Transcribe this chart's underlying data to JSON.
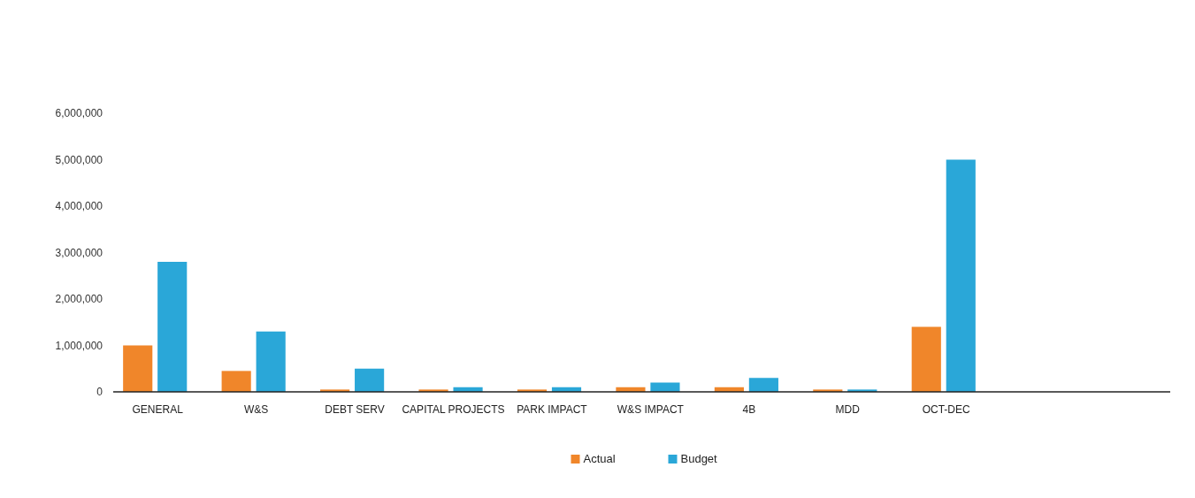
{
  "chart_data": {
    "type": "bar",
    "categories": [
      "GENERAL",
      "W&S",
      "DEBT SERV",
      "CAPITAL PROJECTS",
      "PARK IMPACT",
      "W&S IMPACT",
      "4B",
      "MDD",
      "OCT-DEC"
    ],
    "series": [
      {
        "name": "Actual",
        "color": "#f0862a",
        "values": [
          1000000,
          450000,
          50000,
          50000,
          50000,
          100000,
          100000,
          50000,
          1400000
        ]
      },
      {
        "name": "Budget",
        "color": "#2aa7d8",
        "values": [
          2800000,
          1300000,
          500000,
          100000,
          100000,
          200000,
          300000,
          50000,
          5000000
        ]
      }
    ],
    "ylim": [
      0,
      6000000
    ],
    "yticks": [
      {
        "value": 0,
        "label": "0"
      },
      {
        "value": 1000000,
        "label": "1,000,000"
      },
      {
        "value": 2000000,
        "label": "2,000,000"
      },
      {
        "value": 3000000,
        "label": "3,000,000"
      },
      {
        "value": 4000000,
        "label": "4,000,000"
      },
      {
        "value": 5000000,
        "label": "5,000,000"
      },
      {
        "value": 6000000,
        "label": "6,000,000"
      }
    ],
    "grid": false,
    "legend": "bottom"
  }
}
